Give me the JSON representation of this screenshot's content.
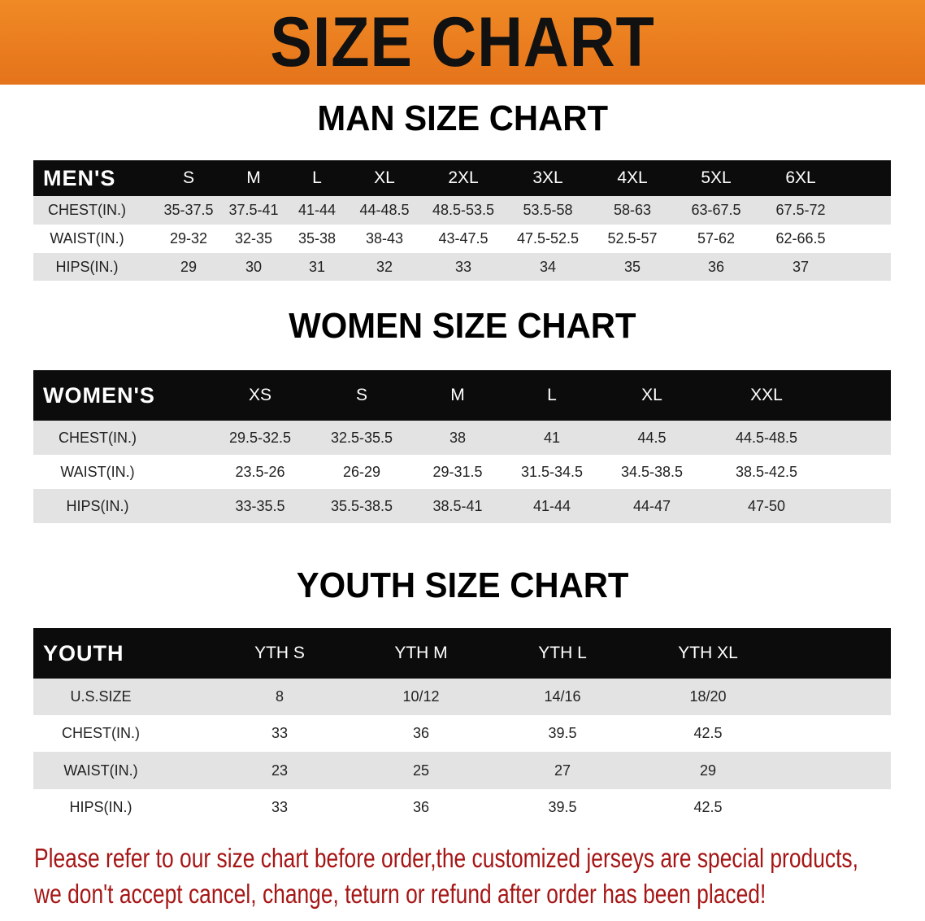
{
  "title": "SIZE CHART",
  "colors": {
    "banner": "#e8781d",
    "header_row": "#0c0c0c",
    "stripe": "#e3e3e3",
    "note": "#a61616"
  },
  "men": {
    "section_title": "MAN SIZE CHART",
    "header": [
      "MEN'S",
      "S",
      "M",
      "L",
      "XL",
      "2XL",
      "3XL",
      "4XL",
      "5XL",
      "6XL"
    ],
    "rows": [
      [
        "CHEST(IN.)",
        "35-37.5",
        "37.5-41",
        "41-44",
        "44-48.5",
        "48.5-53.5",
        "53.5-58",
        "58-63",
        "63-67.5",
        "67.5-72"
      ],
      [
        "WAIST(IN.)",
        "29-32",
        "32-35",
        "35-38",
        "38-43",
        "43-47.5",
        "47.5-52.5",
        "52.5-57",
        "57-62",
        "62-66.5"
      ],
      [
        "HIPS(IN.)",
        "29",
        "30",
        "31",
        "32",
        "33",
        "34",
        "35",
        "36",
        "37"
      ]
    ]
  },
  "women": {
    "section_title": "WOMEN SIZE CHART",
    "header": [
      "WOMEN'S",
      "XS",
      "S",
      "M",
      "L",
      "XL",
      "XXL"
    ],
    "rows": [
      [
        "CHEST(IN.)",
        "29.5-32.5",
        "32.5-35.5",
        "38",
        "41",
        "44.5",
        "44.5-48.5"
      ],
      [
        "WAIST(IN.)",
        "23.5-26",
        "26-29",
        "29-31.5",
        "31.5-34.5",
        "34.5-38.5",
        "38.5-42.5"
      ],
      [
        "HIPS(IN.)",
        "33-35.5",
        "35.5-38.5",
        "38.5-41",
        "41-44",
        "44-47",
        "47-50"
      ]
    ]
  },
  "youth": {
    "section_title": "YOUTH SIZE CHART",
    "header": [
      "YOUTH",
      "YTH S",
      "YTH M",
      "YTH L",
      "YTH XL"
    ],
    "rows": [
      [
        "U.S.SIZE",
        "8",
        "10/12",
        "14/16",
        "18/20"
      ],
      [
        "CHEST(IN.)",
        "33",
        "36",
        "39.5",
        "42.5"
      ],
      [
        "WAIST(IN.)",
        "23",
        "25",
        "27",
        "29"
      ],
      [
        "HIPS(IN.)",
        "33",
        "36",
        "39.5",
        "42.5"
      ]
    ]
  },
  "notice": {
    "line1": "Please refer to our size chart before order,the customized jerseys are special products,",
    "line2": "we don't accept cancel, change, teturn or refund after order has been placed!"
  }
}
